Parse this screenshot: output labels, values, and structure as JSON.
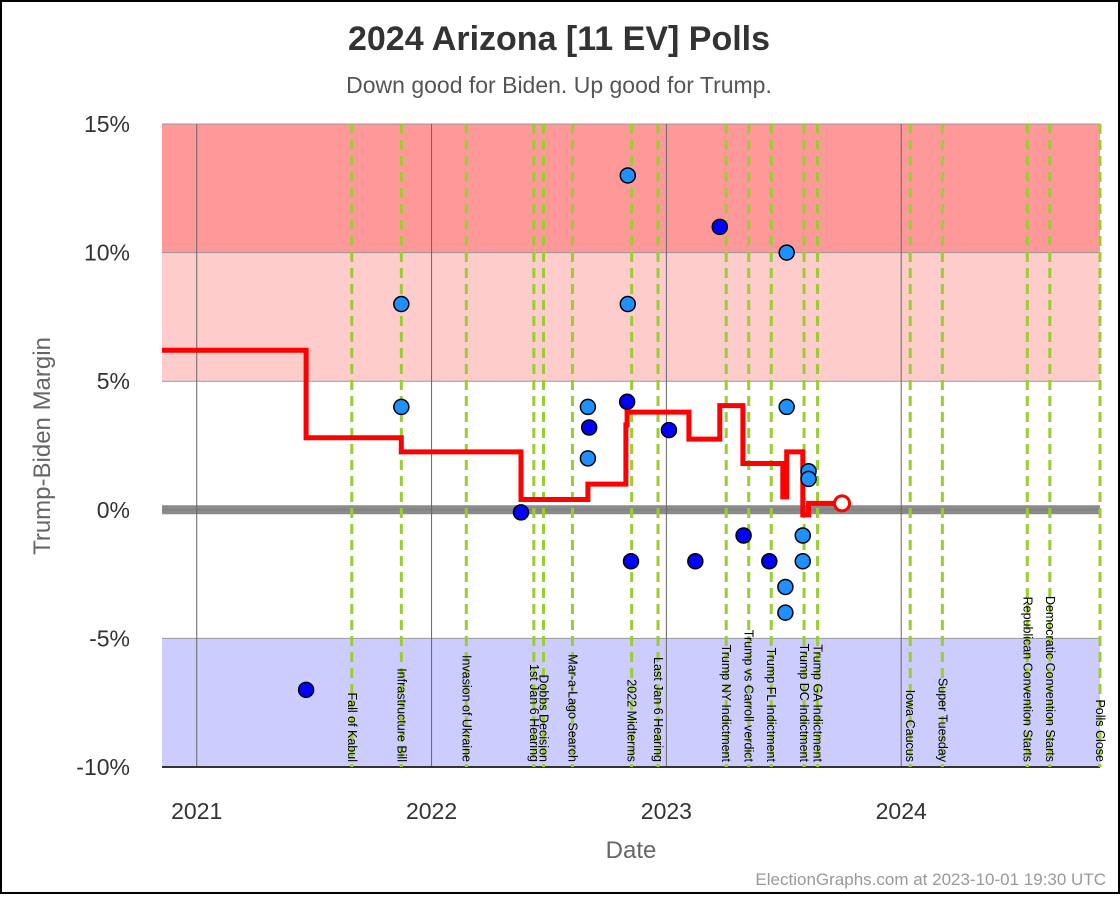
{
  "chart_data": {
    "type": "scatter",
    "title": "2024 Arizona [11 EV] Polls",
    "subtitle": "Down good for Biden. Up good for Trump.",
    "xlabel": "Date",
    "ylabel": "Trump-Biden Margin",
    "ylim": [
      -10,
      15
    ],
    "xlim": [
      "2020-11-08",
      "2024-11-05"
    ],
    "y_ticks": [
      {
        "value": 15,
        "label": "15%"
      },
      {
        "value": 10,
        "label": "10%"
      },
      {
        "value": 5,
        "label": "5%"
      },
      {
        "value": 0,
        "label": "0%"
      },
      {
        "value": -5,
        "label": "-5%"
      },
      {
        "value": -10,
        "label": "-10%"
      }
    ],
    "x_ticks": [
      {
        "date": "2021-01-01",
        "label": "2021"
      },
      {
        "date": "2022-01-01",
        "label": "2022"
      },
      {
        "date": "2023-01-01",
        "label": "2023"
      },
      {
        "date": "2024-01-01",
        "label": "2024"
      }
    ],
    "bands": [
      {
        "from": 10,
        "to": 15,
        "color": "#ff9999"
      },
      {
        "from": 5,
        "to": 10,
        "color": "#ffcccc"
      },
      {
        "from": -10,
        "to": -5,
        "color": "#ccccff"
      }
    ],
    "events": [
      {
        "date": "2021-08-30",
        "label": "Fall of Kabul"
      },
      {
        "date": "2021-11-15",
        "label": "Infrastructure Bill"
      },
      {
        "date": "2022-02-24",
        "label": "Invasion of Ukraine"
      },
      {
        "date": "2022-06-09",
        "label": "1st Jan 6 Hearing"
      },
      {
        "date": "2022-06-24",
        "label": "Dobbs Decision"
      },
      {
        "date": "2022-08-08",
        "label": "Mar-a-Lago Search"
      },
      {
        "date": "2022-11-08",
        "label": "2022 Midterms"
      },
      {
        "date": "2022-12-19",
        "label": "Last Jan 6 Hearing"
      },
      {
        "date": "2023-04-04",
        "label": "Trump NY Indictment"
      },
      {
        "date": "2023-05-09",
        "label": "Trump vs Carroll verdict"
      },
      {
        "date": "2023-06-13",
        "label": "Trump FL Indictment"
      },
      {
        "date": "2023-08-03",
        "label": "Trump DC Indictment"
      },
      {
        "date": "2023-08-24",
        "label": "Trump GA Indictment"
      },
      {
        "date": "2024-01-15",
        "label": "Iowa Caucus"
      },
      {
        "date": "2024-03-05",
        "label": "Super Tuesday"
      },
      {
        "date": "2024-07-15",
        "label": "Republican Convention Starts"
      },
      {
        "date": "2024-08-19",
        "label": "Democratic Convention Starts"
      },
      {
        "date": "2024-11-05",
        "label": "Polls Close"
      }
    ],
    "series": [
      {
        "kind": "polls",
        "points": [
          {
            "date": "2021-06-20",
            "y": -7.0,
            "color": "#0000ff"
          },
          {
            "date": "2021-11-15",
            "y": 8.0,
            "color": "#1e90ff"
          },
          {
            "date": "2021-11-15",
            "y": 4.0,
            "color": "#1e90ff"
          },
          {
            "date": "2022-05-20",
            "y": -0.1,
            "color": "#0000ff"
          },
          {
            "date": "2022-09-01",
            "y": 4.0,
            "color": "#1e90ff"
          },
          {
            "date": "2022-09-03",
            "y": 3.2,
            "color": "#0000ff"
          },
          {
            "date": "2022-09-01",
            "y": 2.0,
            "color": "#1e90ff"
          },
          {
            "date": "2022-11-02",
            "y": 13.0,
            "color": "#1e90ff"
          },
          {
            "date": "2022-11-02",
            "y": 8.0,
            "color": "#1e90ff"
          },
          {
            "date": "2022-11-01",
            "y": 4.2,
            "color": "#0000ff"
          },
          {
            "date": "2022-11-07",
            "y": -2.0,
            "color": "#0000ff"
          },
          {
            "date": "2023-01-05",
            "y": 3.1,
            "color": "#0000ff"
          },
          {
            "date": "2023-02-15",
            "y": -2.0,
            "color": "#0000ff"
          },
          {
            "date": "2023-03-25",
            "y": 11.0,
            "color": "#0000ff"
          },
          {
            "date": "2023-05-01",
            "y": -1.0,
            "color": "#0000ff"
          },
          {
            "date": "2023-06-10",
            "y": -2.0,
            "color": "#0000ff"
          },
          {
            "date": "2023-07-05",
            "y": -3.0,
            "color": "#1e90ff"
          },
          {
            "date": "2023-07-05",
            "y": -4.0,
            "color": "#1e90ff"
          },
          {
            "date": "2023-07-07",
            "y": 10.0,
            "color": "#1e90ff"
          },
          {
            "date": "2023-07-07",
            "y": 4.0,
            "color": "#1e90ff"
          },
          {
            "date": "2023-08-01",
            "y": -1.0,
            "color": "#1e90ff"
          },
          {
            "date": "2023-08-01",
            "y": -2.0,
            "color": "#1e90ff"
          },
          {
            "date": "2023-08-10",
            "y": 1.5,
            "color": "#1e90ff"
          },
          {
            "date": "2023-08-10",
            "y": 1.2,
            "color": "#1e90ff"
          }
        ]
      },
      {
        "kind": "average",
        "color": "#ff0000",
        "points": [
          {
            "date": "2020-11-08",
            "y": 6.2
          },
          {
            "date": "2021-06-20",
            "y": 6.2
          },
          {
            "date": "2021-06-20",
            "y": 2.8
          },
          {
            "date": "2021-11-15",
            "y": 2.8
          },
          {
            "date": "2021-11-15",
            "y": 2.25
          },
          {
            "date": "2022-05-20",
            "y": 2.25
          },
          {
            "date": "2022-05-20",
            "y": 0.4
          },
          {
            "date": "2022-09-01",
            "y": 0.4
          },
          {
            "date": "2022-09-01",
            "y": 1.0
          },
          {
            "date": "2022-10-30",
            "y": 1.0
          },
          {
            "date": "2022-10-30",
            "y": 3.3
          },
          {
            "date": "2022-11-01",
            "y": 3.3
          },
          {
            "date": "2022-11-01",
            "y": 3.8
          },
          {
            "date": "2023-02-05",
            "y": 3.8
          },
          {
            "date": "2023-02-05",
            "y": 2.75
          },
          {
            "date": "2023-03-25",
            "y": 2.75
          },
          {
            "date": "2023-03-25",
            "y": 4.05
          },
          {
            "date": "2023-04-30",
            "y": 4.05
          },
          {
            "date": "2023-04-30",
            "y": 1.8
          },
          {
            "date": "2023-07-01",
            "y": 1.8
          },
          {
            "date": "2023-07-01",
            "y": 0.5
          },
          {
            "date": "2023-07-07",
            "y": 0.5
          },
          {
            "date": "2023-07-07",
            "y": 2.25
          },
          {
            "date": "2023-08-01",
            "y": 2.25
          },
          {
            "date": "2023-08-01",
            "y": -0.2
          },
          {
            "date": "2023-08-10",
            "y": -0.2
          },
          {
            "date": "2023-08-10",
            "y": 0.25
          },
          {
            "date": "2023-10-01",
            "y": 0.25
          }
        ],
        "endpoint": {
          "date": "2023-10-01",
          "y": 0.25
        }
      }
    ]
  },
  "credit": "ElectionGraphs.com at 2023-10-01 19:30 UTC"
}
